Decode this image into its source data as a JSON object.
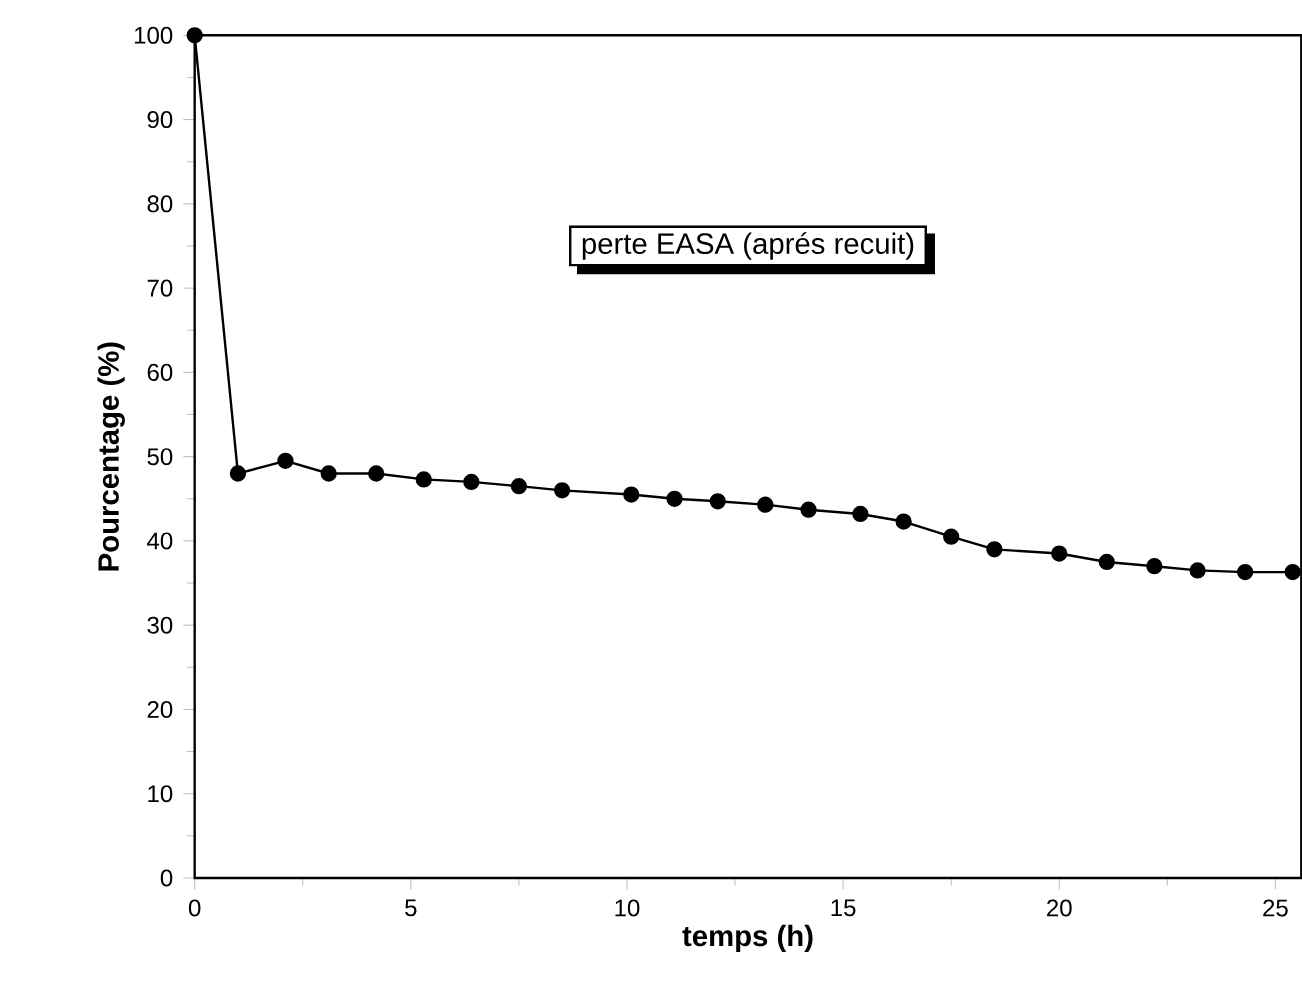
{
  "chart_data": {
    "type": "line",
    "xlabel": "temps (h)",
    "ylabel": "Pourcentage (%)",
    "annotations": [
      "perte EASA (aprés recuit)"
    ],
    "x": [
      0,
      1,
      2.1,
      3.1,
      4.2,
      5.3,
      6.4,
      7.5,
      8.5,
      10.1,
      11.1,
      12.1,
      13.2,
      14.2,
      15.4,
      16.4,
      17.5,
      18.5,
      20.0,
      21.1,
      22.2,
      23.2,
      24.3,
      25.4
    ],
    "series": [
      {
        "color": "#000000",
        "values": [
          100,
          48,
          49.5,
          48,
          48,
          47.3,
          47,
          46.5,
          46,
          45.5,
          45,
          44.7,
          44.3,
          43.7,
          43.2,
          42.3,
          40.5,
          39,
          38.5,
          37.5,
          37,
          36.5,
          36.3,
          36.3
        ]
      }
    ],
    "xlim": [
      0,
      25.6
    ],
    "ylim": [
      0,
      100
    ],
    "xticks": [
      0,
      5,
      10,
      15,
      20,
      25
    ],
    "yticks": [
      0,
      10,
      20,
      30,
      40,
      50,
      60,
      70,
      80,
      90,
      100
    ],
    "marker": "circle",
    "line_style": "solid",
    "grid": false
  }
}
